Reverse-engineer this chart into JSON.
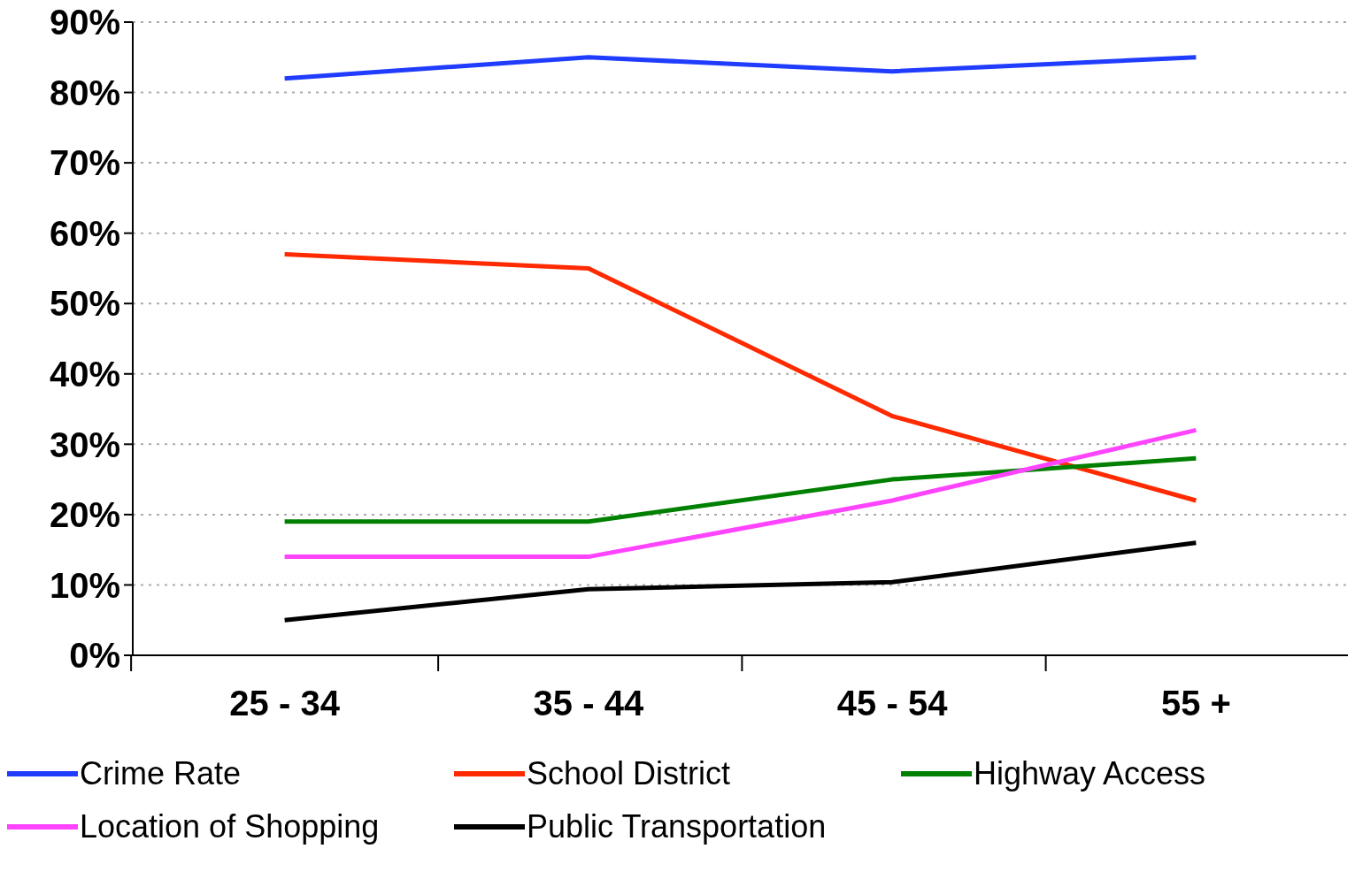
{
  "chart_data": {
    "type": "line",
    "categories": [
      "25 - 34",
      "35 - 44",
      "45 - 54",
      "55 +"
    ],
    "series": [
      {
        "name": "Crime Rate",
        "color": "#1f3cff",
        "values": [
          82,
          85,
          83,
          85
        ]
      },
      {
        "name": "School District",
        "color": "#ff2a00",
        "values": [
          57,
          55,
          34,
          22
        ]
      },
      {
        "name": "Highway Access",
        "color": "#008000",
        "values": [
          19,
          19,
          25,
          28
        ]
      },
      {
        "name": "Location of Shopping",
        "color": "#ff44ff",
        "values": [
          14,
          14,
          22,
          32
        ]
      },
      {
        "name": "Public Transportation",
        "color": "#000000",
        "values": [
          5,
          9.4,
          10.4,
          16
        ]
      }
    ],
    "ylim": [
      0,
      90
    ],
    "yticks": [
      {
        "value": 0,
        "label": "0%"
      },
      {
        "value": 10,
        "label": "10%"
      },
      {
        "value": 20,
        "label": "20%"
      },
      {
        "value": 30,
        "label": "30%"
      },
      {
        "value": 40,
        "label": "40%"
      },
      {
        "value": 50,
        "label": "50%"
      },
      {
        "value": 60,
        "label": "60%"
      },
      {
        "value": 70,
        "label": "70%"
      },
      {
        "value": 80,
        "label": "80%"
      },
      {
        "value": 90,
        "label": "90%"
      }
    ],
    "grid": "y",
    "legend": "bottom",
    "marker": "none",
    "line_style": "solid"
  }
}
